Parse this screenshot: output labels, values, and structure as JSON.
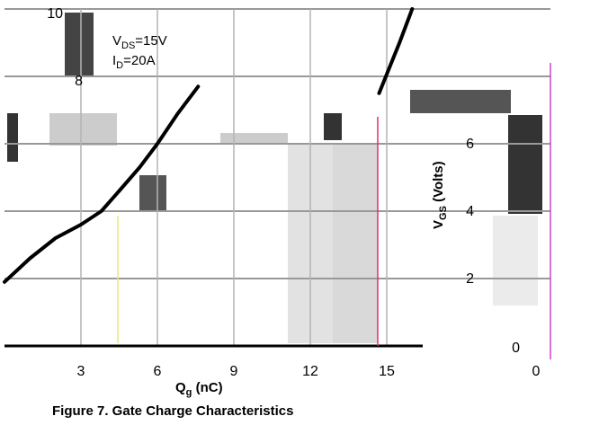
{
  "chart_data": {
    "type": "line",
    "title": "",
    "caption": "Figure 7. Gate Charge Characteristics",
    "xlabel": "Qg (nC)",
    "xlabel_main": "Q",
    "xlabel_sub": "g",
    "xlabel_unit": " (nC)",
    "ylabel": "VGS (Volts)",
    "ylabel_main": "V",
    "ylabel_sub": "GS",
    "ylabel_unit": " (Volts)",
    "xlim": [
      0,
      16
    ],
    "ylim": [
      0,
      10
    ],
    "x_ticks": [
      "0",
      "3",
      "6",
      "9",
      "12",
      "15"
    ],
    "x_tick_values": [
      0,
      3,
      6,
      9,
      12,
      15
    ],
    "y_ticks": [
      "0",
      "2",
      "4",
      "6",
      "8",
      "10"
    ],
    "y_tick_values": [
      0,
      2,
      4,
      6,
      8,
      10
    ],
    "grid": true,
    "annotations": [
      {
        "main": "V",
        "sub": "DS",
        "rest": "=15V"
      },
      {
        "main": "I",
        "sub": "D",
        "rest": "=20A"
      }
    ],
    "series": [
      {
        "x": [
          0,
          1.0,
          2.0,
          3.0,
          3.8,
          4.5,
          5.3,
          6.0,
          6.8,
          7.6
        ],
        "y": [
          1.9,
          2.6,
          3.2,
          3.6,
          4.0,
          4.6,
          5.3,
          6.0,
          6.9,
          7.7
        ]
      },
      {
        "x": [
          14.7,
          15.5,
          16.0
        ],
        "y": [
          7.5,
          9.0,
          10.0
        ]
      }
    ]
  }
}
